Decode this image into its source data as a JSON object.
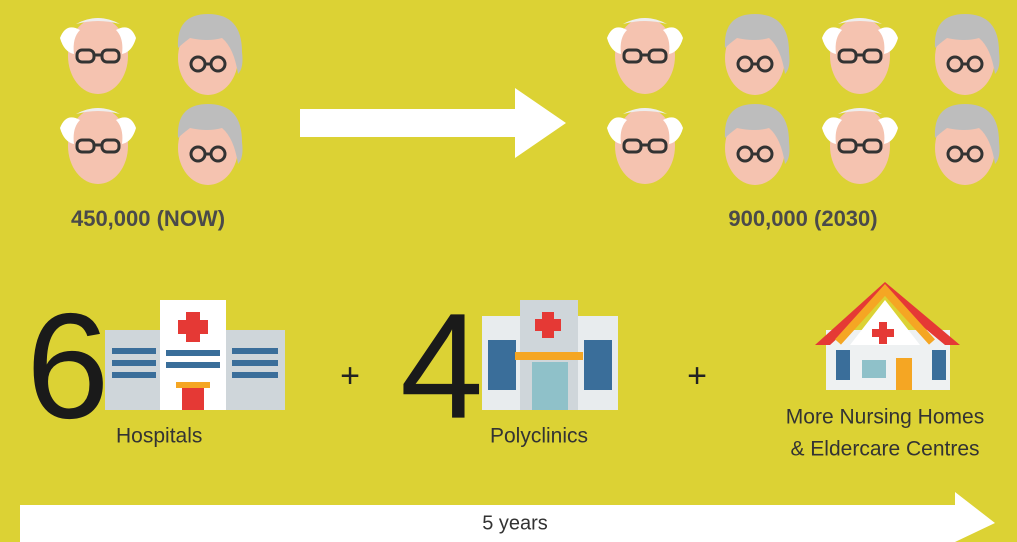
{
  "now_label": "450,000 (NOW)",
  "future_label": "900,000 (2030)",
  "hospitals": {
    "count": 6,
    "label": "Hospitals"
  },
  "plus_1": "+",
  "polyclinics": {
    "count": 4,
    "label": "Polyclinics"
  },
  "plus_2": "+",
  "nursing": {
    "line_1": "More Nursing Homes",
    "line_2": "& Eldercare Centres"
  },
  "timeline": "5 years"
}
